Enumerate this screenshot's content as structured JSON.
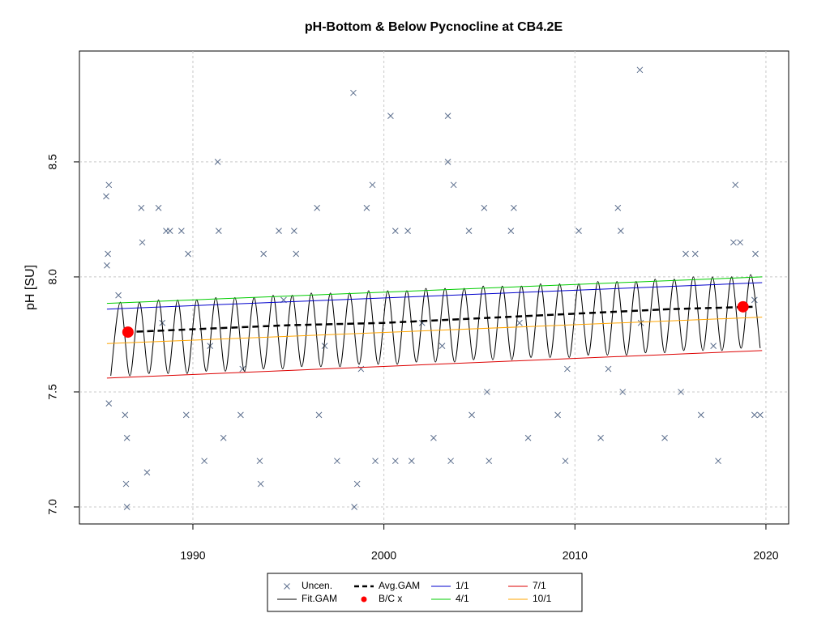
{
  "chart_data": {
    "type": "line",
    "title": "pH-Bottom & Below Pycnocline at CB4.2E",
    "ylabel": "pH [SU]",
    "xlim": [
      1984.06,
      2021.19
    ],
    "ylim": [
      6.926,
      8.982
    ],
    "xticks": [
      1990,
      2000,
      2010,
      2020
    ],
    "yticks": [
      {
        "value": 7,
        "label": "7.0"
      },
      7.5,
      {
        "value": 8,
        "label": "8.0"
      },
      8.5
    ],
    "grid": true,
    "legend": "bottom",
    "series": [
      {
        "name": "Uncen.",
        "color": "#5a6d8c",
        "marker": "x",
        "x": [
          1985.46,
          1985.6,
          1985.5,
          1985.55,
          1985.6,
          1986.1,
          1986.55,
          1986.5,
          1986.55,
          1986.45,
          1987.3,
          1987.35,
          1987.6,
          1988.2,
          1988.6,
          1988.8,
          1989.4,
          1989.75,
          1989.65,
          1990.6,
          1991.3,
          1991.35,
          1991.6,
          1992.5,
          1993.7,
          1993.5,
          1993.55,
          1994.5,
          1995.3,
          1995.4,
          1996.5,
          1996.6,
          1997.55,
          1998.4,
          1998.45,
          1998.6,
          1999.4,
          1999.1,
          1999.55,
          2000.35,
          2000.6,
          2000.6,
          2001.25,
          2001.45,
          2002.6,
          2003.35,
          2003.35,
          2003.65,
          2003.5,
          2004.45,
          2004.6,
          2005.25,
          2005.5,
          2006.8,
          2006.65,
          2007.55,
          2009.1,
          2009.5,
          2010.2,
          2011.35,
          2012.25,
          2012.4,
          2012.5,
          2013.4,
          2014.7,
          2015.8,
          2016.3,
          2016.6,
          2017.5,
          2018.4,
          2018.3,
          2018.65,
          2019.4,
          2019.7,
          2019.45,
          1988.4,
          1990.9,
          1992.6,
          1994.75,
          1996.9,
          1998.8,
          2002.0,
          2003.05,
          2005.4,
          2007.1,
          2009.6,
          2011.75,
          2013.45,
          2015.55,
          2017.25,
          2019.4
        ],
        "values": [
          8.35,
          8.4,
          8.05,
          8.1,
          7.45,
          7.92,
          7.0,
          7.1,
          7.3,
          7.4,
          8.3,
          8.15,
          7.15,
          8.3,
          8.2,
          8.2,
          8.2,
          8.1,
          7.4,
          7.2,
          8.5,
          8.2,
          7.3,
          7.4,
          8.1,
          7.2,
          7.1,
          8.2,
          8.2,
          8.1,
          8.3,
          7.4,
          7.2,
          8.8,
          7.0,
          7.1,
          8.4,
          8.3,
          7.2,
          8.7,
          8.2,
          7.2,
          8.2,
          7.2,
          7.3,
          8.7,
          8.5,
          8.4,
          7.2,
          8.2,
          7.4,
          8.3,
          7.2,
          8.3,
          8.2,
          7.3,
          7.4,
          7.2,
          8.2,
          7.3,
          8.3,
          8.2,
          7.5,
          8.9,
          7.3,
          8.1,
          8.1,
          7.4,
          7.2,
          8.4,
          8.15,
          8.15,
          7.4,
          7.4,
          8.1,
          7.8,
          7.7,
          7.6,
          7.9,
          7.7,
          7.6,
          7.8,
          7.7,
          7.5,
          7.8,
          7.6,
          7.6,
          7.8,
          7.5,
          7.7,
          7.9
        ]
      },
      {
        "name": "Fit.GAM",
        "color": "#000000",
        "marker": "line",
        "x": [
          1985.7,
          1986.2,
          1986.7,
          1987.2,
          1987.7,
          1988.2,
          1988.7,
          1989.2,
          1989.7,
          1990.2,
          1990.7,
          1991.2,
          1991.7,
          1992.2,
          1992.7,
          1993.2,
          1993.7,
          1994.2,
          1994.7,
          1995.2,
          1995.7,
          1996.2,
          1996.7,
          1997.2,
          1997.7,
          1998.2,
          1998.7,
          1999.2,
          1999.7,
          2000.2,
          2000.7,
          2001.2,
          2001.7,
          2002.2,
          2002.7,
          2003.2,
          2003.7,
          2004.2,
          2004.7,
          2005.2,
          2005.7,
          2006.2,
          2006.7,
          2007.2,
          2007.7,
          2008.2,
          2008.7,
          2009.2,
          2009.7,
          2010.2,
          2010.7,
          2011.2,
          2011.7,
          2012.2,
          2012.7,
          2013.2,
          2013.7,
          2014.2,
          2014.7,
          2015.2,
          2015.7,
          2016.2,
          2016.7,
          2017.2,
          2017.7,
          2018.2,
          2018.7,
          2019.2,
          2019.7
        ],
        "values": [
          7.57,
          7.89,
          7.57,
          7.89,
          7.58,
          7.9,
          7.58,
          7.9,
          7.58,
          7.9,
          7.59,
          7.91,
          7.59,
          7.91,
          7.59,
          7.91,
          7.6,
          7.92,
          7.6,
          7.92,
          7.61,
          7.93,
          7.61,
          7.93,
          7.61,
          7.93,
          7.62,
          7.94,
          7.62,
          7.94,
          7.62,
          7.94,
          7.63,
          7.95,
          7.63,
          7.95,
          7.63,
          7.95,
          7.64,
          7.96,
          7.64,
          7.96,
          7.64,
          7.96,
          7.65,
          7.97,
          7.65,
          7.97,
          7.65,
          7.97,
          7.66,
          7.98,
          7.66,
          7.98,
          7.66,
          7.98,
          7.67,
          7.99,
          7.67,
          7.99,
          7.68,
          8.0,
          7.68,
          8.0,
          7.68,
          8.0,
          7.69,
          8.01,
          7.69
        ]
      },
      {
        "name": "Avg.GAM",
        "color": "#000000",
        "marker": "dash",
        "x": [
          1986.5,
          1995,
          2000,
          2005,
          2010,
          2015,
          2019.3
        ],
        "values": [
          7.76,
          7.79,
          7.8,
          7.82,
          7.84,
          7.86,
          7.87
        ]
      },
      {
        "name": "B/C x",
        "color": "#ff0000",
        "marker": "dot",
        "x": [
          1986.6,
          2018.8
        ],
        "values": [
          7.76,
          7.87
        ]
      },
      {
        "name": "1/1",
        "color": "#0000cc",
        "marker": "line",
        "x": [
          1985.5,
          2019.8
        ],
        "values": [
          7.86,
          7.975
        ]
      },
      {
        "name": "4/1",
        "color": "#00cc00",
        "marker": "line",
        "x": [
          1985.5,
          2019.8
        ],
        "values": [
          7.885,
          8.0
        ]
      },
      {
        "name": "7/1",
        "color": "#dd0000",
        "marker": "line",
        "x": [
          1985.5,
          2019.8
        ],
        "values": [
          7.56,
          7.68
        ]
      },
      {
        "name": "10/1",
        "color": "#ffa500",
        "marker": "line",
        "x": [
          1985.5,
          2019.8
        ],
        "values": [
          7.71,
          7.825
        ]
      }
    ]
  }
}
